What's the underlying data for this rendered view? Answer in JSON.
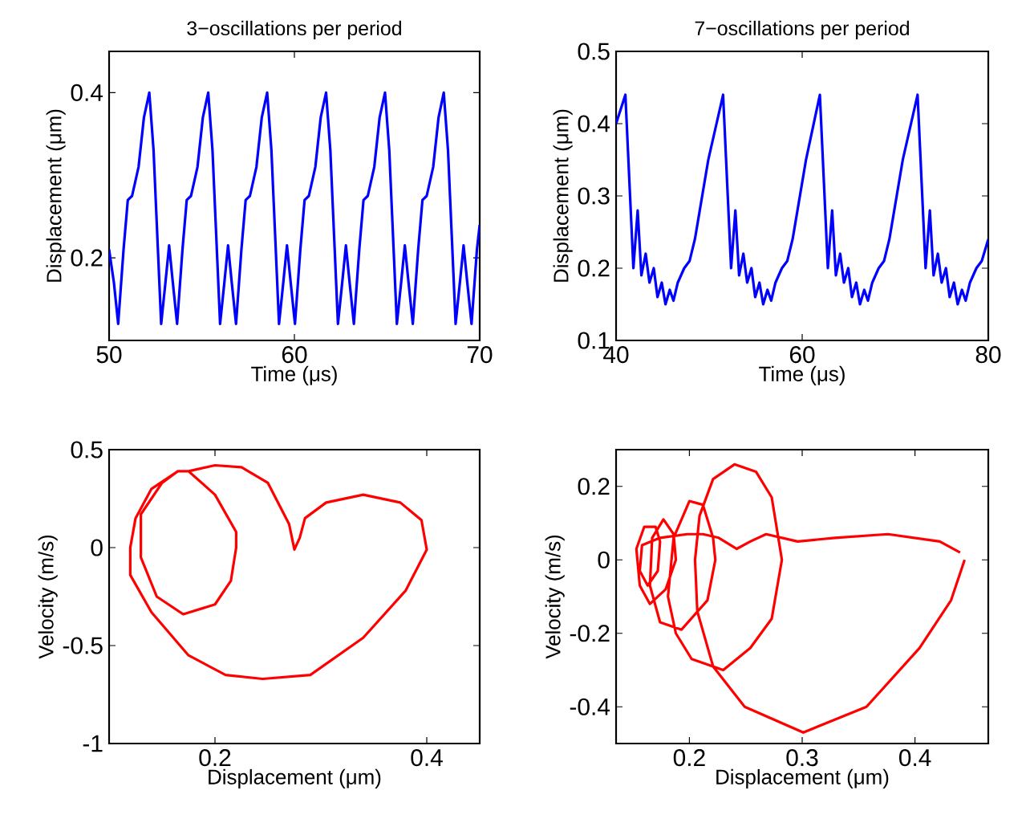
{
  "chart_data": [
    {
      "type": "line",
      "title": "3−oscillations per period",
      "xlabel": "Time (μs)",
      "ylabel": "Displacement (μm)",
      "xlim": [
        50,
        70
      ],
      "ylim": [
        0.1,
        0.45
      ],
      "xticks": [
        50,
        60,
        70
      ],
      "yticks": [
        0.2,
        0.4
      ],
      "series": [
        {
          "color": "#0000ff",
          "x": [
            50.0,
            50.26,
            50.49,
            50.78,
            51.01,
            51.24,
            51.59,
            51.88,
            52.17,
            52.4,
            52.81,
            53.04,
            53.24,
            53.44,
            53.67,
            53.96,
            54.19,
            54.42,
            54.77,
            55.06,
            55.35,
            55.58,
            55.99,
            56.22,
            56.42,
            56.62,
            56.85,
            57.14,
            57.37,
            57.6,
            57.95,
            58.24,
            58.53,
            58.76,
            59.17,
            59.4,
            59.6,
            59.8,
            60.03,
            60.32,
            60.55,
            60.78,
            61.13,
            61.42,
            61.71,
            61.94,
            62.35,
            62.58,
            62.78,
            62.98,
            63.21,
            63.5,
            63.73,
            63.96,
            64.31,
            64.6,
            64.89,
            65.12,
            65.53,
            65.76,
            65.96,
            66.16,
            66.39,
            66.68,
            66.91,
            67.14,
            67.49,
            67.78,
            68.06,
            68.29,
            68.7,
            68.93,
            69.13,
            69.33,
            69.56,
            69.85,
            70.0
          ],
          "values": [
            0.21,
            0.17,
            0.12,
            0.21,
            0.27,
            0.275,
            0.31,
            0.37,
            0.4,
            0.33,
            0.12,
            0.17,
            0.215,
            0.17,
            0.12,
            0.21,
            0.27,
            0.275,
            0.31,
            0.37,
            0.4,
            0.33,
            0.12,
            0.17,
            0.215,
            0.17,
            0.12,
            0.21,
            0.27,
            0.275,
            0.31,
            0.37,
            0.4,
            0.33,
            0.12,
            0.17,
            0.215,
            0.17,
            0.12,
            0.21,
            0.27,
            0.275,
            0.31,
            0.37,
            0.4,
            0.33,
            0.12,
            0.17,
            0.215,
            0.17,
            0.12,
            0.21,
            0.27,
            0.275,
            0.31,
            0.37,
            0.4,
            0.33,
            0.12,
            0.17,
            0.215,
            0.17,
            0.12,
            0.21,
            0.27,
            0.275,
            0.31,
            0.37,
            0.4,
            0.33,
            0.12,
            0.17,
            0.215,
            0.17,
            0.12,
            0.21,
            0.24
          ]
        }
      ]
    },
    {
      "type": "line",
      "title": "7−oscillations per period",
      "xlabel": "Time (μs)",
      "ylabel": "Displacement (μm)",
      "xlim": [
        40,
        80
      ],
      "ylim": [
        0.1,
        0.5
      ],
      "xticks": [
        40,
        60,
        80
      ],
      "yticks": [
        0.1,
        0.2,
        0.3,
        0.4,
        0.5
      ],
      "series": [
        {
          "color": "#0000ff",
          "x": [
            40.0,
            41.0,
            41.86,
            42.32,
            42.72,
            43.18,
            43.59,
            44.05,
            44.45,
            44.91,
            45.31,
            45.77,
            46.17,
            46.63,
            47.32,
            47.9,
            48.47,
            49.91,
            51.5,
            52.36,
            52.82,
            53.22,
            53.68,
            54.09,
            54.55,
            54.95,
            55.41,
            55.81,
            56.27,
            56.67,
            57.13,
            57.82,
            58.4,
            58.97,
            60.41,
            61.9,
            62.76,
            63.22,
            63.62,
            64.08,
            64.49,
            64.95,
            65.35,
            65.81,
            66.21,
            66.67,
            67.07,
            67.53,
            68.22,
            68.8,
            69.37,
            70.81,
            72.4,
            73.26,
            73.72,
            74.12,
            74.58,
            74.99,
            75.45,
            75.85,
            76.31,
            76.71,
            77.17,
            77.57,
            78.03,
            78.72,
            79.3,
            80.0
          ],
          "values": [
            0.4,
            0.44,
            0.2,
            0.28,
            0.19,
            0.22,
            0.18,
            0.2,
            0.16,
            0.18,
            0.15,
            0.17,
            0.155,
            0.18,
            0.2,
            0.21,
            0.24,
            0.35,
            0.44,
            0.2,
            0.28,
            0.19,
            0.22,
            0.18,
            0.2,
            0.16,
            0.18,
            0.15,
            0.17,
            0.155,
            0.18,
            0.2,
            0.21,
            0.24,
            0.35,
            0.44,
            0.2,
            0.28,
            0.19,
            0.22,
            0.18,
            0.2,
            0.16,
            0.18,
            0.15,
            0.17,
            0.155,
            0.18,
            0.2,
            0.21,
            0.24,
            0.35,
            0.44,
            0.2,
            0.28,
            0.19,
            0.22,
            0.18,
            0.2,
            0.16,
            0.18,
            0.15,
            0.17,
            0.155,
            0.18,
            0.2,
            0.21,
            0.24
          ]
        }
      ]
    },
    {
      "type": "line",
      "xlabel": "Displacement (μm)",
      "ylabel": "Velocity (m/s)",
      "xlim": [
        0.1,
        0.45
      ],
      "ylim": [
        -1,
        0.5
      ],
      "xticks": [
        0.2,
        0.4
      ],
      "yticks": [
        -1,
        -0.5,
        0,
        0.5
      ],
      "series": [
        {
          "color": "#ff0000",
          "x": [
            0.275,
            0.27,
            0.25,
            0.225,
            0.2,
            0.175,
            0.165,
            0.14,
            0.125,
            0.12,
            0.12,
            0.14,
            0.175,
            0.21,
            0.245,
            0.29,
            0.34,
            0.38,
            0.4,
            0.395,
            0.375,
            0.34,
            0.305,
            0.285,
            0.28,
            0.275,
            0.27,
            0.25,
            0.225,
            0.2,
            0.175,
            0.2,
            0.22,
            0.22,
            0.215,
            0.2,
            0.17,
            0.145,
            0.13,
            0.13,
            0.15,
            0.165
          ],
          "values": [
            -0.01,
            0.12,
            0.33,
            0.41,
            0.42,
            0.39,
            0.39,
            0.3,
            0.15,
            0.0,
            -0.14,
            -0.33,
            -0.55,
            -0.65,
            -0.67,
            -0.65,
            -0.46,
            -0.22,
            -0.01,
            0.14,
            0.23,
            0.27,
            0.23,
            0.15,
            0.05,
            -0.01,
            0.12,
            0.33,
            0.41,
            0.42,
            0.39,
            0.27,
            0.08,
            0,
            -0.17,
            -0.29,
            -0.34,
            -0.25,
            -0.05,
            0.17,
            0.33,
            0.39
          ]
        }
      ]
    },
    {
      "type": "line",
      "xlabel": "Displacement (μm)",
      "ylabel": "Velocity (m/s)",
      "xlim": [
        0.135,
        0.465
      ],
      "ylim": [
        -0.5,
        0.3
      ],
      "xticks": [
        0.2,
        0.3,
        0.4
      ],
      "yticks": [
        -0.4,
        -0.2,
        0,
        0.2
      ],
      "series": [
        {
          "color": "#ff0000",
          "x": [
            0.444,
            0.432,
            0.404,
            0.357,
            0.301,
            0.249,
            0.221,
            0.207,
            0.205,
            0.209,
            0.221,
            0.24,
            0.259,
            0.273,
            0.282,
            0.273,
            0.254,
            0.23,
            0.202,
            0.188,
            0.181,
            0.186,
            0.2,
            0.212,
            0.221,
            0.223,
            0.216,
            0.193,
            0.174,
            0.165,
            0.167,
            0.177,
            0.186,
            0.188,
            0.179,
            0.165,
            0.156,
            0.153,
            0.16,
            0.17,
            0.174,
            0.172,
            0.163,
            0.156,
            0.158,
            0.174,
            0.198,
            0.212,
            0.226,
            0.242,
            0.254,
            0.268,
            0.296,
            0.329,
            0.376,
            0.422,
            0.44
          ],
          "values": [
            0,
            -0.11,
            -0.24,
            -0.4,
            -0.47,
            -0.4,
            -0.29,
            -0.14,
            0,
            0.12,
            0.22,
            0.26,
            0.24,
            0.17,
            0,
            -0.16,
            -0.24,
            -0.3,
            -0.27,
            -0.2,
            -0.1,
            0.06,
            0.16,
            0.15,
            0.06,
            0,
            -0.11,
            -0.19,
            -0.17,
            -0.07,
            0.06,
            0.11,
            0.07,
            0,
            -0.08,
            -0.12,
            -0.07,
            0.03,
            0.09,
            0.09,
            0.05,
            -0.03,
            -0.07,
            -0.03,
            0.04,
            0.06,
            0.07,
            0.07,
            0.06,
            0.03,
            0.05,
            0.07,
            0.05,
            0.06,
            0.07,
            0.05,
            0.02
          ]
        }
      ]
    }
  ]
}
